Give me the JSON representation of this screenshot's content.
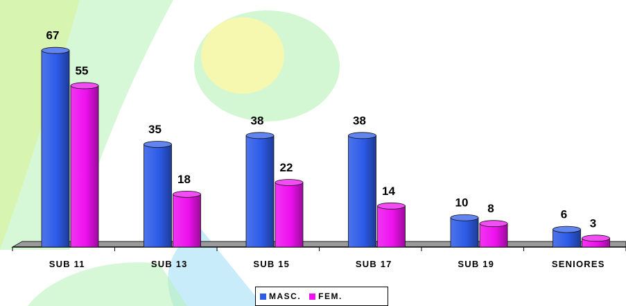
{
  "colors": {
    "masc": "#2d5be8",
    "fem": "#ee11ee",
    "bg_green": "#b6f2b6",
    "bg_yellow": "#fff7a8",
    "bg_blue": "#c9ecfb"
  },
  "chart_data": {
    "type": "bar",
    "categories": [
      "SUB 11",
      "SUB 13",
      "SUB 15",
      "SUB 17",
      "SUB 19",
      "SENIORES"
    ],
    "series": [
      {
        "name": "MASC.",
        "values": [
          67,
          35,
          38,
          38,
          10,
          6
        ]
      },
      {
        "name": "FEM.",
        "values": [
          55,
          18,
          22,
          14,
          8,
          3
        ]
      }
    ],
    "title": "",
    "xlabel": "",
    "ylabel": "",
    "ylim": [
      0,
      70
    ],
    "grid": false,
    "legend": "bottom"
  }
}
